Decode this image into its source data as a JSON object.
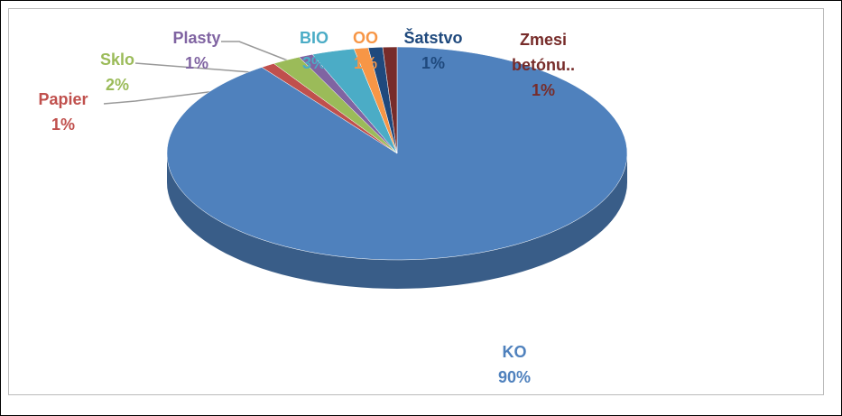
{
  "chart_data": {
    "type": "pie",
    "categories": [
      "KO",
      "Papier",
      "Sklo",
      "Plasty",
      "BIO",
      "OO",
      "Šatstvo",
      "Zmesi betónu.."
    ],
    "values": [
      90,
      1,
      2,
      1,
      3,
      1,
      1,
      1
    ],
    "value_labels": [
      "90%",
      "1%",
      "2%",
      "1%",
      "3%",
      "1%",
      "1%",
      "1%"
    ],
    "colors": [
      "#4f81bd",
      "#c0504d",
      "#9bbb59",
      "#8064a2",
      "#4bacc6",
      "#f79646",
      "#1f497d",
      "#772c2a"
    ]
  }
}
